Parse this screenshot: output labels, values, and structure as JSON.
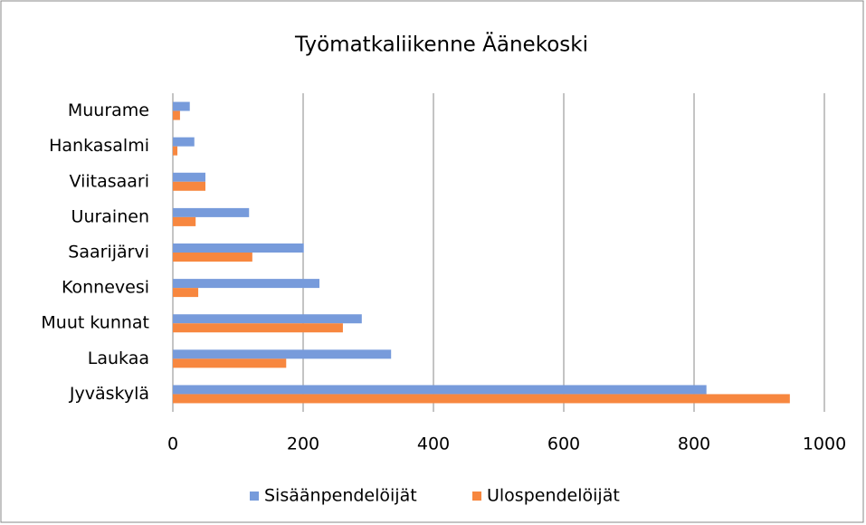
{
  "chart_data": {
    "type": "hbar",
    "title": "Työmatkaliikenne Äänekoski",
    "categories": [
      "Muurame",
      "Hankasalmi",
      "Viitasaari",
      "Uurainen",
      "Saarijärvi",
      "Konnevesi",
      "Muut kunnat",
      "Laukaa",
      "Jyväskylä"
    ],
    "series": [
      {
        "name": "Sisäänpendelöijät",
        "color": "#779bdb",
        "values": [
          26,
          33,
          50,
          117,
          201,
          225,
          290,
          335,
          819
        ]
      },
      {
        "name": "Ulospendelöijät",
        "color": "#f7873f",
        "values": [
          11,
          7,
          50,
          35,
          122,
          39,
          261,
          174,
          947
        ]
      }
    ],
    "xlim": [
      0,
      1000
    ],
    "xticks": [
      0,
      200,
      400,
      600,
      800,
      1000
    ],
    "grid": true,
    "legend": "bottom"
  }
}
